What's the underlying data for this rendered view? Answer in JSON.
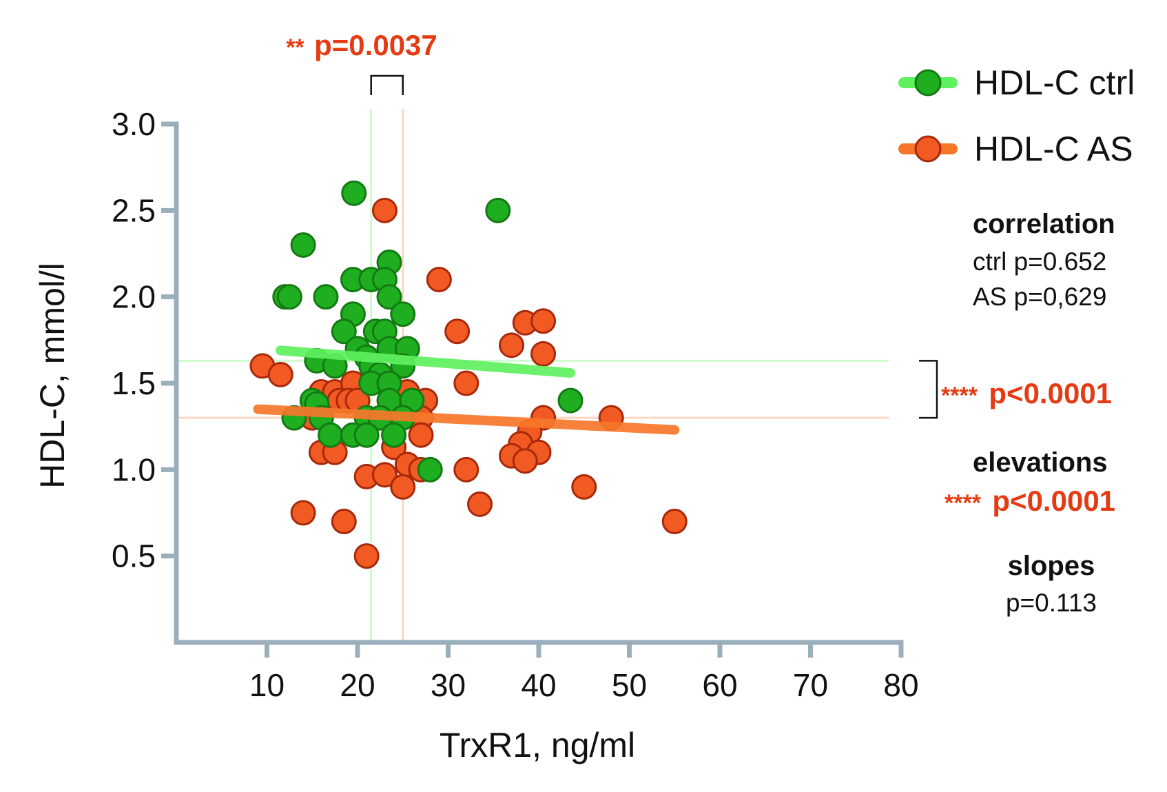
{
  "chart_data": {
    "type": "scatter",
    "xlabel": "TrxR1, ng/ml",
    "ylabel": "HDL-C, mmol/l",
    "xlim": [
      0,
      80
    ],
    "ylim": [
      0,
      3.0
    ],
    "x_ticks": [
      "10",
      "20",
      "30",
      "40",
      "50",
      "60",
      "70",
      "80"
    ],
    "y_ticks": [
      "0.5",
      "1.0",
      "1.5",
      "2.0",
      "2.5",
      "3.0"
    ],
    "series": [
      {
        "name": "HDL-C ctrl",
        "color": "#1fae1f",
        "edge_color": "#137a13",
        "line_color": "#5ef05e",
        "median_x": 21.5,
        "median_y": 1.63,
        "fit": {
          "x": [
            11.5,
            43.5
          ],
          "y": [
            1.69,
            1.56
          ]
        },
        "points": [
          [
            19.6,
            2.6
          ],
          [
            35.5,
            2.5
          ],
          [
            14.0,
            2.3
          ],
          [
            23.5,
            2.2
          ],
          [
            19.5,
            2.1
          ],
          [
            21.5,
            2.1
          ],
          [
            23.0,
            2.1
          ],
          [
            12.0,
            2.0
          ],
          [
            12.5,
            2.0
          ],
          [
            16.5,
            2.0
          ],
          [
            23.5,
            2.0
          ],
          [
            19.5,
            1.9
          ],
          [
            25.0,
            1.9
          ],
          [
            18.5,
            1.8
          ],
          [
            22.0,
            1.8
          ],
          [
            23.0,
            1.8
          ],
          [
            20.0,
            1.7
          ],
          [
            23.5,
            1.7
          ],
          [
            25.5,
            1.7
          ],
          [
            15.5,
            1.63
          ],
          [
            21.0,
            1.65
          ],
          [
            17.5,
            1.6
          ],
          [
            21.5,
            1.6
          ],
          [
            25.0,
            1.6
          ],
          [
            22.5,
            1.55
          ],
          [
            21.5,
            1.5
          ],
          [
            23.5,
            1.5
          ],
          [
            15.0,
            1.4
          ],
          [
            15.5,
            1.38
          ],
          [
            23.5,
            1.4
          ],
          [
            26.0,
            1.4
          ],
          [
            43.5,
            1.4
          ],
          [
            13.0,
            1.3
          ],
          [
            16.0,
            1.3
          ],
          [
            21.0,
            1.3
          ],
          [
            22.5,
            1.3
          ],
          [
            25.0,
            1.3
          ],
          [
            17.0,
            1.2
          ],
          [
            19.5,
            1.2
          ],
          [
            21.0,
            1.2
          ],
          [
            24.0,
            1.2
          ],
          [
            28.0,
            1.0
          ]
        ]
      },
      {
        "name": "HDL-C AS",
        "color": "#f15a22",
        "edge_color": "#a8280a",
        "line_color": "#f7772a",
        "median_x": 25.0,
        "median_y": 1.3,
        "fit": {
          "x": [
            9.0,
            55.0
          ],
          "y": [
            1.35,
            1.23
          ]
        },
        "points": [
          [
            23.0,
            2.5
          ],
          [
            29.0,
            2.1
          ],
          [
            31.0,
            1.8
          ],
          [
            38.5,
            1.85
          ],
          [
            40.5,
            1.86
          ],
          [
            37.0,
            1.72
          ],
          [
            40.5,
            1.67
          ],
          [
            9.5,
            1.6
          ],
          [
            11.5,
            1.55
          ],
          [
            32.0,
            1.5
          ],
          [
            16.0,
            1.45
          ],
          [
            17.5,
            1.45
          ],
          [
            19.5,
            1.5
          ],
          [
            25.5,
            1.45
          ],
          [
            18.0,
            1.4
          ],
          [
            19.0,
            1.4
          ],
          [
            20.0,
            1.4
          ],
          [
            27.5,
            1.4
          ],
          [
            15.0,
            1.3
          ],
          [
            27.0,
            1.3
          ],
          [
            40.5,
            1.3
          ],
          [
            48.0,
            1.3
          ],
          [
            27.0,
            1.2
          ],
          [
            39.0,
            1.22
          ],
          [
            38.0,
            1.15
          ],
          [
            24.0,
            1.13
          ],
          [
            16.0,
            1.1
          ],
          [
            17.5,
            1.1
          ],
          [
            37.0,
            1.08
          ],
          [
            40.0,
            1.1
          ],
          [
            38.5,
            1.05
          ],
          [
            25.5,
            1.03
          ],
          [
            27.0,
            1.0
          ],
          [
            32.0,
            1.0
          ],
          [
            21.0,
            0.96
          ],
          [
            23.0,
            0.97
          ],
          [
            25.0,
            0.9
          ],
          [
            45.0,
            0.9
          ],
          [
            33.5,
            0.8
          ],
          [
            14.0,
            0.75
          ],
          [
            18.5,
            0.7
          ],
          [
            55.0,
            0.7
          ],
          [
            21.0,
            0.5
          ]
        ]
      }
    ],
    "annotations": {
      "top_stars": "**",
      "top_p": "p=0.0037",
      "right_stars": "****",
      "right_p": "p<0.0001",
      "correlation_title": "correlation",
      "correlation_ctrl": "ctrl p=0.652",
      "correlation_as": "AS p=0,629",
      "elevations_title": "elevations",
      "elevations_stars": "****",
      "elevations_p": "p<0.0001",
      "slopes_title": "slopes",
      "slopes_p": "p=0.113"
    },
    "axis_color": "#9aaebb",
    "significance_color": "#e53a12"
  }
}
